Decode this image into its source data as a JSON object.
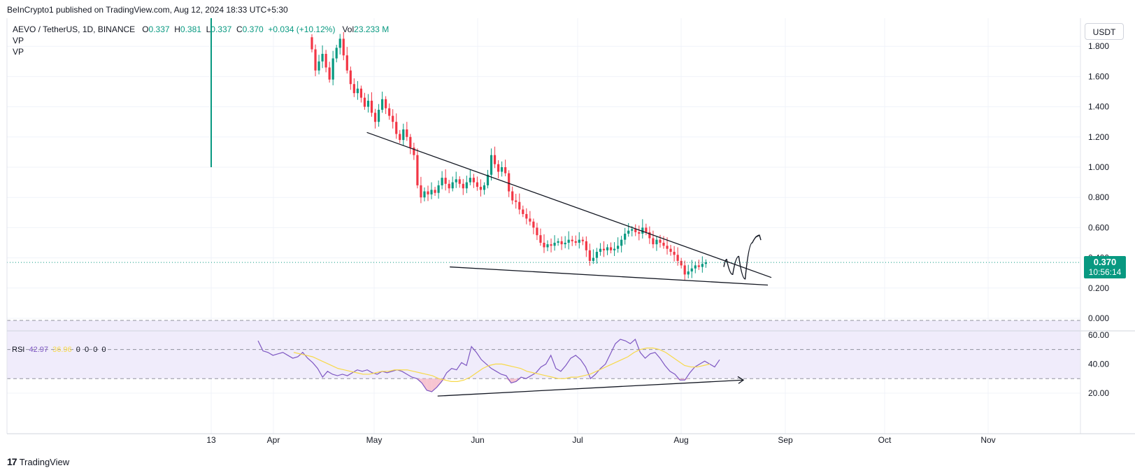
{
  "header": {
    "publisher": "BeInCrypto1 published on TradingView.com, Aug 12, 2024 18:33 UTC+5:30"
  },
  "legend": {
    "symbol": "AEVO / TetherUS, 1D, BINANCE",
    "open_label": "O",
    "open": "0.337",
    "high_label": "H",
    "high": "0.381",
    "low_label": "L",
    "low": "0.337",
    "close_label": "C",
    "close": "0.370",
    "change": "+0.034 (+10.12%)",
    "vol_label": "Vol",
    "vol": "23.233 M",
    "indicators": [
      "VP",
      "VP"
    ]
  },
  "rsi_legend": {
    "name": "RSI",
    "value": "42.97",
    "ma_value": "36.96",
    "flags": [
      "0",
      "0",
      "0",
      "0"
    ]
  },
  "currency": "USDT",
  "price_tag": {
    "price": "0.370",
    "countdown": "10:56:14"
  },
  "footer": {
    "brand": "TradingView",
    "logo_glyph": "17"
  },
  "colors": {
    "up": "#089981",
    "down": "#f23645",
    "rsi": "#7e57c2",
    "rsi_ma": "#f7d94a",
    "rsi_band": "#f0ecfb",
    "trend": "#131722"
  },
  "chart_data": [
    {
      "type": "candlestick",
      "symbol": "AEVO / TetherUS",
      "y_ticks": [
        "1.800",
        "1.600",
        "1.400",
        "1.200",
        "1.000",
        "0.800",
        "0.600",
        "0.400",
        "0.200",
        "0.000"
      ],
      "x_ticks": [
        "13",
        "Apr",
        "May",
        "Jun",
        "Jul",
        "Aug",
        "Sep",
        "Oct",
        "Nov"
      ],
      "grid": true,
      "current_price": 0.37,
      "closes": [
        1.78,
        1.64,
        1.7,
        1.75,
        1.66,
        1.58,
        1.72,
        1.79,
        1.85,
        1.74,
        1.64,
        1.55,
        1.49,
        1.52,
        1.46,
        1.4,
        1.44,
        1.36,
        1.3,
        1.38,
        1.45,
        1.39,
        1.34,
        1.3,
        1.22,
        1.18,
        1.25,
        1.2,
        1.13,
        1.08,
        0.88,
        0.8,
        0.84,
        0.82,
        0.85,
        0.83,
        0.88,
        0.93,
        0.89,
        0.86,
        0.9,
        0.92,
        0.89,
        0.86,
        0.9,
        0.93,
        0.9,
        0.87,
        0.85,
        0.88,
        0.95,
        1.08,
        1.02,
        0.97,
        1.0,
        0.96,
        0.84,
        0.78,
        0.77,
        0.72,
        0.69,
        0.66,
        0.64,
        0.6,
        0.55,
        0.5,
        0.47,
        0.49,
        0.48,
        0.5,
        0.51,
        0.49,
        0.5,
        0.52,
        0.51,
        0.5,
        0.52,
        0.51,
        0.45,
        0.38,
        0.4,
        0.44,
        0.46,
        0.45,
        0.47,
        0.45,
        0.46,
        0.48,
        0.52,
        0.56,
        0.58,
        0.59,
        0.57,
        0.56,
        0.6,
        0.57,
        0.53,
        0.49,
        0.52,
        0.5,
        0.48,
        0.46,
        0.44,
        0.42,
        0.38,
        0.35,
        0.29,
        0.31,
        0.33,
        0.35,
        0.34,
        0.36,
        0.37
      ],
      "triangle_upper": [
        [
          0.2,
          1.23
        ],
        [
          1.0,
          0.27
        ]
      ],
      "triangle_lower": [
        [
          0.43,
          0.34
        ],
        [
          1.0,
          0.22
        ]
      ],
      "projection": [
        [
          0.0,
          0.34
        ],
        [
          0.08,
          0.39
        ],
        [
          0.25,
          0.29
        ],
        [
          0.42,
          0.41
        ],
        [
          0.6,
          0.26
        ],
        [
          0.8,
          0.5
        ],
        [
          1.0,
          0.55
        ]
      ]
    },
    {
      "type": "line",
      "name": "RSI",
      "y_ticks": [
        "60.00",
        "40.00",
        "20.00"
      ],
      "band": [
        30,
        70
      ],
      "midline": 50,
      "rsi": [
        56,
        49,
        48,
        46,
        47,
        48,
        46,
        44,
        45,
        48,
        44,
        41,
        37,
        31,
        35,
        33,
        32,
        33,
        32,
        34,
        36,
        35,
        36,
        34,
        33,
        35,
        34,
        35,
        36,
        35,
        33,
        31,
        30,
        27,
        22,
        21,
        24,
        28,
        34,
        37,
        36,
        41,
        39,
        52,
        48,
        43,
        40,
        37,
        35,
        33,
        32,
        27,
        28,
        31,
        30,
        32,
        34,
        38,
        40,
        46,
        37,
        35,
        39,
        44,
        46,
        43,
        38,
        30,
        33,
        37,
        40,
        47,
        54,
        57,
        56,
        54,
        57,
        48,
        44,
        47,
        48,
        44,
        39,
        35,
        33,
        29,
        29,
        34,
        38,
        40,
        42,
        40,
        38,
        43
      ],
      "rsi_ma": [
        48,
        47,
        46,
        45,
        43,
        41,
        39,
        37,
        36,
        35,
        34,
        33,
        33,
        34,
        35,
        35,
        36,
        36,
        36,
        35,
        34,
        33,
        32,
        30,
        29,
        28,
        28,
        29,
        31,
        34,
        37,
        39,
        40,
        40,
        39,
        38,
        37,
        35,
        34,
        33,
        32,
        31,
        30,
        30,
        31,
        31,
        32,
        33,
        35,
        37,
        39,
        41,
        43,
        45,
        48,
        50,
        51,
        51,
        50,
        48,
        45,
        42,
        39,
        38,
        38,
        39,
        40
      ],
      "divergence_line": [
        [
          0.25,
          18
        ],
        [
          1.0,
          29
        ]
      ]
    }
  ]
}
